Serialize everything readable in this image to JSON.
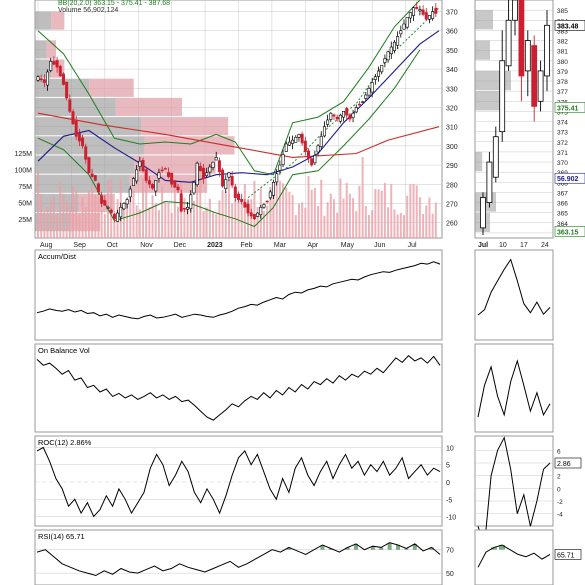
{
  "header": {
    "bb_label": "BB(20,2.0) 363.15 - 375.41 - 387.68",
    "volume_label": "Volume 56,902,124"
  },
  "colors": {
    "up": "#000000",
    "down": "#cc1f2f",
    "volume": "#e8a0a8",
    "ma_long": "#cc2b2b",
    "ma_mid": "#1c1c8c",
    "bb": "#1e7d1e",
    "ma_short": "#2f8a2f",
    "grid": "#c8c8c8",
    "profile_gray": "#9b9b9b",
    "profile_red": "#e0a2a8",
    "rsi_fill": "#3f8a4a"
  },
  "chart_data": [
    {
      "type": "line",
      "name": "price",
      "x_labels": [
        "Aug",
        "Sep",
        "Oct",
        "Nov",
        "Dec",
        "2023",
        "Feb",
        "Mar",
        "Apr",
        "May",
        "Jun",
        "Jul"
      ],
      "y_ticks": [
        260,
        270,
        280,
        290,
        300,
        310,
        320,
        330,
        340,
        350,
        360,
        370
      ],
      "volume_ticks": [
        "25M",
        "50M",
        "75M",
        "100M",
        "125M"
      ],
      "ylim": [
        252,
        376
      ],
      "price_path": [
        [
          0,
          336
        ],
        [
          2,
          333
        ],
        [
          4,
          344
        ],
        [
          6,
          341
        ],
        [
          8,
          332
        ],
        [
          10,
          318
        ],
        [
          12,
          305
        ],
        [
          14,
          300
        ],
        [
          16,
          286
        ],
        [
          18,
          282
        ],
        [
          20,
          270
        ],
        [
          22,
          268
        ],
        [
          24,
          262
        ],
        [
          26,
          268
        ],
        [
          28,
          272
        ],
        [
          30,
          283
        ],
        [
          32,
          292
        ],
        [
          34,
          282
        ],
        [
          36,
          278
        ],
        [
          38,
          286
        ],
        [
          40,
          288
        ],
        [
          42,
          280
        ],
        [
          44,
          277
        ],
        [
          45,
          266
        ],
        [
          47,
          268
        ],
        [
          49,
          281
        ],
        [
          50,
          291
        ],
        [
          52,
          283
        ],
        [
          54,
          289
        ],
        [
          56,
          294
        ],
        [
          58,
          279
        ],
        [
          60,
          286
        ],
        [
          62,
          273
        ],
        [
          64,
          271
        ],
        [
          66,
          265
        ],
        [
          68,
          262
        ],
        [
          70,
          268
        ],
        [
          72,
          271
        ],
        [
          74,
          281
        ],
        [
          76,
          290
        ],
        [
          78,
          301
        ],
        [
          80,
          303
        ],
        [
          82,
          306
        ],
        [
          84,
          297
        ],
        [
          86,
          290
        ],
        [
          88,
          300
        ],
        [
          90,
          310
        ],
        [
          92,
          317
        ],
        [
          94,
          314
        ],
        [
          96,
          318
        ],
        [
          98,
          314
        ],
        [
          100,
          320
        ],
        [
          102,
          323
        ],
        [
          104,
          330
        ],
        [
          106,
          336
        ],
        [
          108,
          342
        ],
        [
          110,
          349
        ],
        [
          112,
          354
        ],
        [
          114,
          360
        ],
        [
          116,
          367
        ],
        [
          118,
          372
        ],
        [
          120,
          371
        ],
        [
          122,
          366
        ],
        [
          124,
          370
        ],
        [
          126,
          368
        ]
      ],
      "ma_long": [
        [
          0,
          317
        ],
        [
          20,
          311
        ],
        [
          40,
          306
        ],
        [
          60,
          300
        ],
        [
          80,
          294
        ],
        [
          100,
          296
        ],
        [
          110,
          303
        ],
        [
          126,
          310
        ]
      ],
      "ma_mid": [
        [
          0,
          292
        ],
        [
          8,
          305
        ],
        [
          16,
          308
        ],
        [
          24,
          299
        ],
        [
          32,
          291
        ],
        [
          40,
          282
        ],
        [
          48,
          281
        ],
        [
          56,
          285
        ],
        [
          64,
          286
        ],
        [
          72,
          285
        ],
        [
          80,
          289
        ],
        [
          88,
          296
        ],
        [
          96,
          312
        ],
        [
          104,
          325
        ],
        [
          112,
          339
        ],
        [
          120,
          353
        ],
        [
          126,
          360
        ]
      ],
      "ma_short": [
        [
          66,
          273
        ],
        [
          80,
          291
        ],
        [
          92,
          311
        ],
        [
          100,
          322
        ],
        [
          110,
          346
        ],
        [
          120,
          362
        ],
        [
          126,
          372
        ]
      ],
      "bb_upper": [
        [
          0,
          360
        ],
        [
          8,
          348
        ],
        [
          16,
          327
        ],
        [
          24,
          304
        ],
        [
          32,
          301
        ],
        [
          40,
          302
        ],
        [
          48,
          301
        ],
        [
          56,
          306
        ],
        [
          62,
          302
        ],
        [
          68,
          287
        ],
        [
          74,
          285
        ],
        [
          80,
          312
        ],
        [
          88,
          315
        ],
        [
          96,
          323
        ],
        [
          104,
          341
        ],
        [
          112,
          362
        ],
        [
          120,
          376
        ]
      ],
      "bb_lower": [
        [
          0,
          304
        ],
        [
          8,
          298
        ],
        [
          16,
          285
        ],
        [
          24,
          261
        ],
        [
          32,
          265
        ],
        [
          40,
          271
        ],
        [
          48,
          270
        ],
        [
          56,
          265
        ],
        [
          62,
          262
        ],
        [
          68,
          258
        ],
        [
          74,
          268
        ],
        [
          80,
          285
        ],
        [
          88,
          287
        ],
        [
          96,
          300
        ],
        [
          104,
          314
        ],
        [
          112,
          330
        ],
        [
          120,
          350
        ]
      ],
      "volume_profile": [
        [
          260,
          0.31
        ],
        [
          270,
          0.38
        ],
        [
          280,
          0.82
        ],
        [
          290,
          0.86
        ],
        [
          300,
          0.95
        ],
        [
          310,
          0.92
        ],
        [
          320,
          0.7
        ],
        [
          330,
          0.47
        ],
        [
          340,
          0.14
        ],
        [
          350,
          0.1
        ],
        [
          365,
          0.14
        ]
      ],
      "volume_profile_red_share": 0.45
    },
    {
      "type": "line",
      "name": "zoom",
      "x_labels": [
        "Jul",
        "10",
        "17",
        "24"
      ],
      "y_ticks": [
        363,
        364,
        365,
        366,
        367,
        368,
        369,
        370,
        371,
        372,
        373,
        374,
        375,
        376,
        377,
        378,
        379,
        380,
        381,
        382,
        383,
        384,
        385
      ],
      "ylim": [
        362.5,
        386
      ],
      "last_price": "383.48",
      "bb_mid_label": "375.41",
      "low_label": "363.15",
      "vol_label": "56.902",
      "candles": [
        [
          363.5,
          366.5,
          362.8,
          367.0
        ],
        [
          366.0,
          370.0,
          365.5,
          371.0
        ],
        [
          368.5,
          372.5,
          368.0,
          373.5
        ],
        [
          373.0,
          380.0,
          372.0,
          383.0
        ],
        [
          379.5,
          384.0,
          379.0,
          386.0
        ],
        [
          384.0,
          386.0,
          382.5,
          388.0
        ],
        [
          386.5,
          378.5,
          376.0,
          387.5
        ],
        [
          379.0,
          382.0,
          376.5,
          383.0
        ],
        [
          381.5,
          375.5,
          374.0,
          382.5
        ],
        [
          376.0,
          379.0,
          375.0,
          380.0
        ],
        [
          378.5,
          383.5,
          377.0,
          385.0
        ]
      ]
    },
    {
      "type": "line",
      "name": "accum_dist",
      "title": "Accum/Dist",
      "ylim": [
        0,
        1
      ],
      "values": [
        0.28,
        0.3,
        0.33,
        0.31,
        0.3,
        0.32,
        0.29,
        0.31,
        0.27,
        0.28,
        0.24,
        0.26,
        0.22,
        0.25,
        0.23,
        0.21,
        0.2,
        0.23,
        0.25,
        0.21,
        0.22,
        0.24,
        0.26,
        0.22,
        0.24,
        0.26,
        0.25,
        0.23,
        0.22,
        0.25,
        0.27,
        0.3,
        0.34,
        0.36,
        0.39,
        0.38,
        0.42,
        0.45,
        0.48,
        0.46,
        0.52,
        0.55,
        0.54,
        0.58,
        0.6,
        0.63,
        0.62,
        0.66,
        0.68,
        0.7,
        0.72,
        0.71,
        0.75,
        0.78,
        0.8,
        0.82,
        0.81,
        0.84,
        0.86,
        0.88,
        0.9,
        0.93,
        0.92,
        0.95,
        0.92
      ],
      "zoom_values": [
        0.25,
        0.32,
        0.55,
        0.7,
        0.85,
        0.98,
        0.7,
        0.4,
        0.28,
        0.42,
        0.26,
        0.35
      ]
    },
    {
      "type": "line",
      "name": "obv",
      "title": "On Balance Vol",
      "ylim": [
        0,
        1
      ],
      "values": [
        0.9,
        0.82,
        0.85,
        0.78,
        0.7,
        0.75,
        0.62,
        0.65,
        0.52,
        0.55,
        0.46,
        0.5,
        0.4,
        0.44,
        0.38,
        0.42,
        0.36,
        0.4,
        0.45,
        0.38,
        0.42,
        0.36,
        0.4,
        0.33,
        0.35,
        0.28,
        0.2,
        0.12,
        0.08,
        0.15,
        0.22,
        0.3,
        0.26,
        0.34,
        0.4,
        0.36,
        0.45,
        0.38,
        0.48,
        0.42,
        0.52,
        0.46,
        0.56,
        0.5,
        0.6,
        0.56,
        0.64,
        0.58,
        0.68,
        0.62,
        0.7,
        0.66,
        0.74,
        0.7,
        0.78,
        0.72,
        0.82,
        0.92,
        0.86,
        0.95,
        0.88,
        0.92,
        0.85,
        0.94,
        0.82
      ],
      "zoom_values": [
        0.12,
        0.55,
        0.8,
        0.4,
        0.15,
        0.6,
        0.88,
        0.55,
        0.2,
        0.45,
        0.15,
        0.3
      ]
    },
    {
      "type": "line",
      "name": "roc",
      "title": "ROC(12) 2.86%",
      "y_ticks": [
        -10,
        -5,
        0,
        5,
        10
      ],
      "ylim": [
        -11,
        11
      ],
      "values": [
        9,
        10,
        6,
        1,
        -2,
        -7,
        -5,
        -9,
        -6,
        -10,
        -8,
        -4,
        -7,
        -2,
        -5,
        -9,
        -6,
        -3,
        4,
        8,
        5,
        -1,
        2,
        6,
        3,
        -3,
        -6,
        -2,
        -5,
        -9,
        -4,
        2,
        7,
        9,
        5,
        8,
        3,
        -2,
        -5,
        1,
        -3,
        4,
        7,
        2,
        -1,
        3,
        6,
        1,
        5,
        8,
        4,
        6,
        2,
        5,
        3,
        6,
        2,
        4,
        7,
        1,
        3,
        5,
        2,
        4,
        3
      ],
      "zoom_values": [
        -6,
        -9,
        2,
        6,
        8,
        3,
        -4,
        -1,
        -6,
        -2,
        3,
        4
      ],
      "zoom_ticks": [
        -4,
        -2,
        0,
        2,
        4,
        6
      ],
      "zoom_ylim": [
        -5,
        7
      ],
      "zoom_last_label": "2.86"
    },
    {
      "type": "line",
      "name": "rsi",
      "title": "RSI(14) 65.71",
      "y_ticks": [
        50,
        70
      ],
      "ylim": [
        45,
        80
      ],
      "values": [
        68,
        70,
        64,
        58,
        55,
        52,
        50,
        48,
        52,
        49,
        54,
        51,
        50,
        53,
        56,
        52,
        54,
        58,
        55,
        53,
        51,
        54,
        57,
        60,
        55,
        58,
        62,
        66,
        70,
        68,
        72,
        69,
        66,
        70,
        74,
        71,
        68,
        72,
        75,
        70,
        73,
        72,
        76,
        74,
        71,
        75,
        69,
        72,
        66
      ],
      "zoom_values": [
        55,
        68,
        72,
        74,
        70,
        66,
        64,
        67,
        62,
        66
      ],
      "zoom_last_label": "65.71"
    }
  ]
}
